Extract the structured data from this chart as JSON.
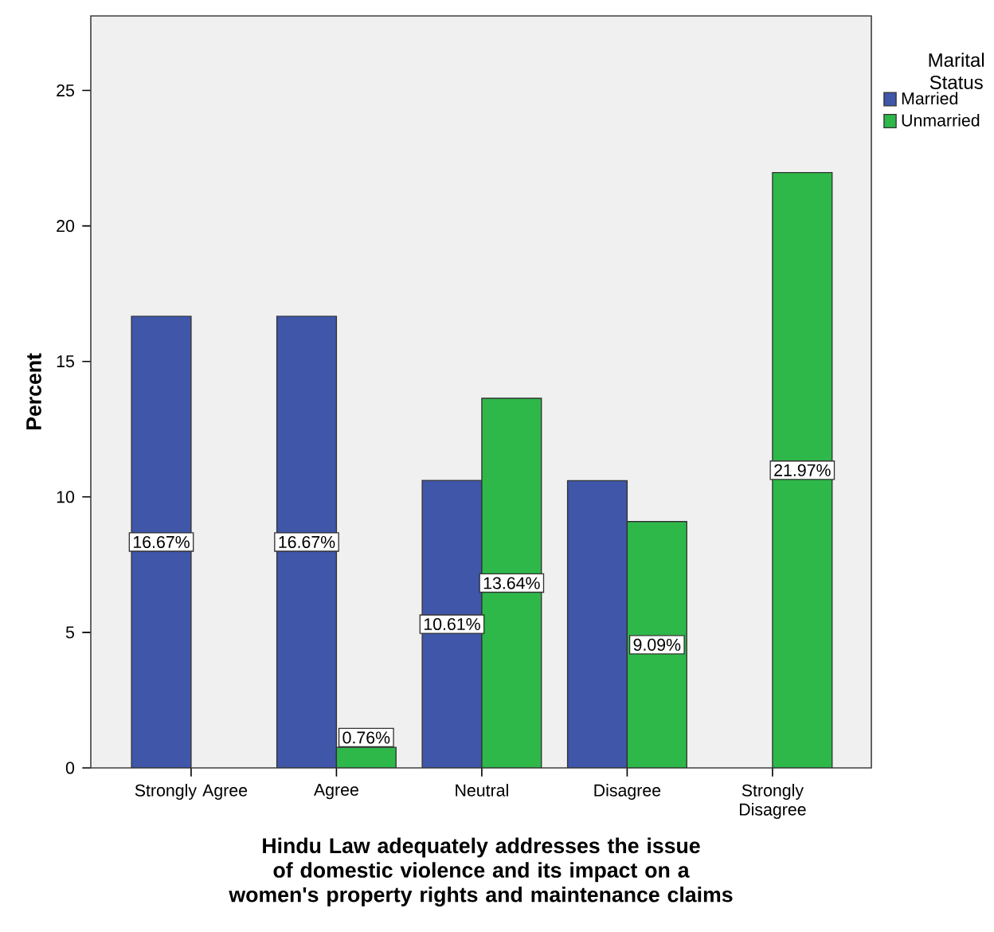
{
  "chart_data": {
    "type": "bar",
    "xlabel": "Hindu Law adequately addresses the issue of domestic violence and its impact on a women's property rights and maintenance claims",
    "ylabel": "Percent",
    "legend_title": "Marital Status",
    "categories": [
      "Strongly Agree",
      "Agree",
      "Neutral",
      "Disagree",
      "Strongly Disagree"
    ],
    "series": [
      {
        "name": "Married",
        "color": "#3f56a9",
        "values": [
          16.67,
          16.67,
          10.61,
          10.6,
          null
        ],
        "value_labels": [
          "16.67%",
          "16.67%",
          "10.61%",
          null,
          null
        ]
      },
      {
        "name": "Unmarried",
        "color": "#2eb84a",
        "values": [
          null,
          0.76,
          13.64,
          9.09,
          21.97
        ],
        "value_labels": [
          null,
          "0.76%",
          "13.64%",
          "9.09%",
          "21.97%"
        ]
      }
    ],
    "ylim": [
      0,
      27.75
    ],
    "yticks": [
      0,
      5,
      10,
      15,
      20,
      25
    ],
    "legend": "top right",
    "grid": false
  }
}
